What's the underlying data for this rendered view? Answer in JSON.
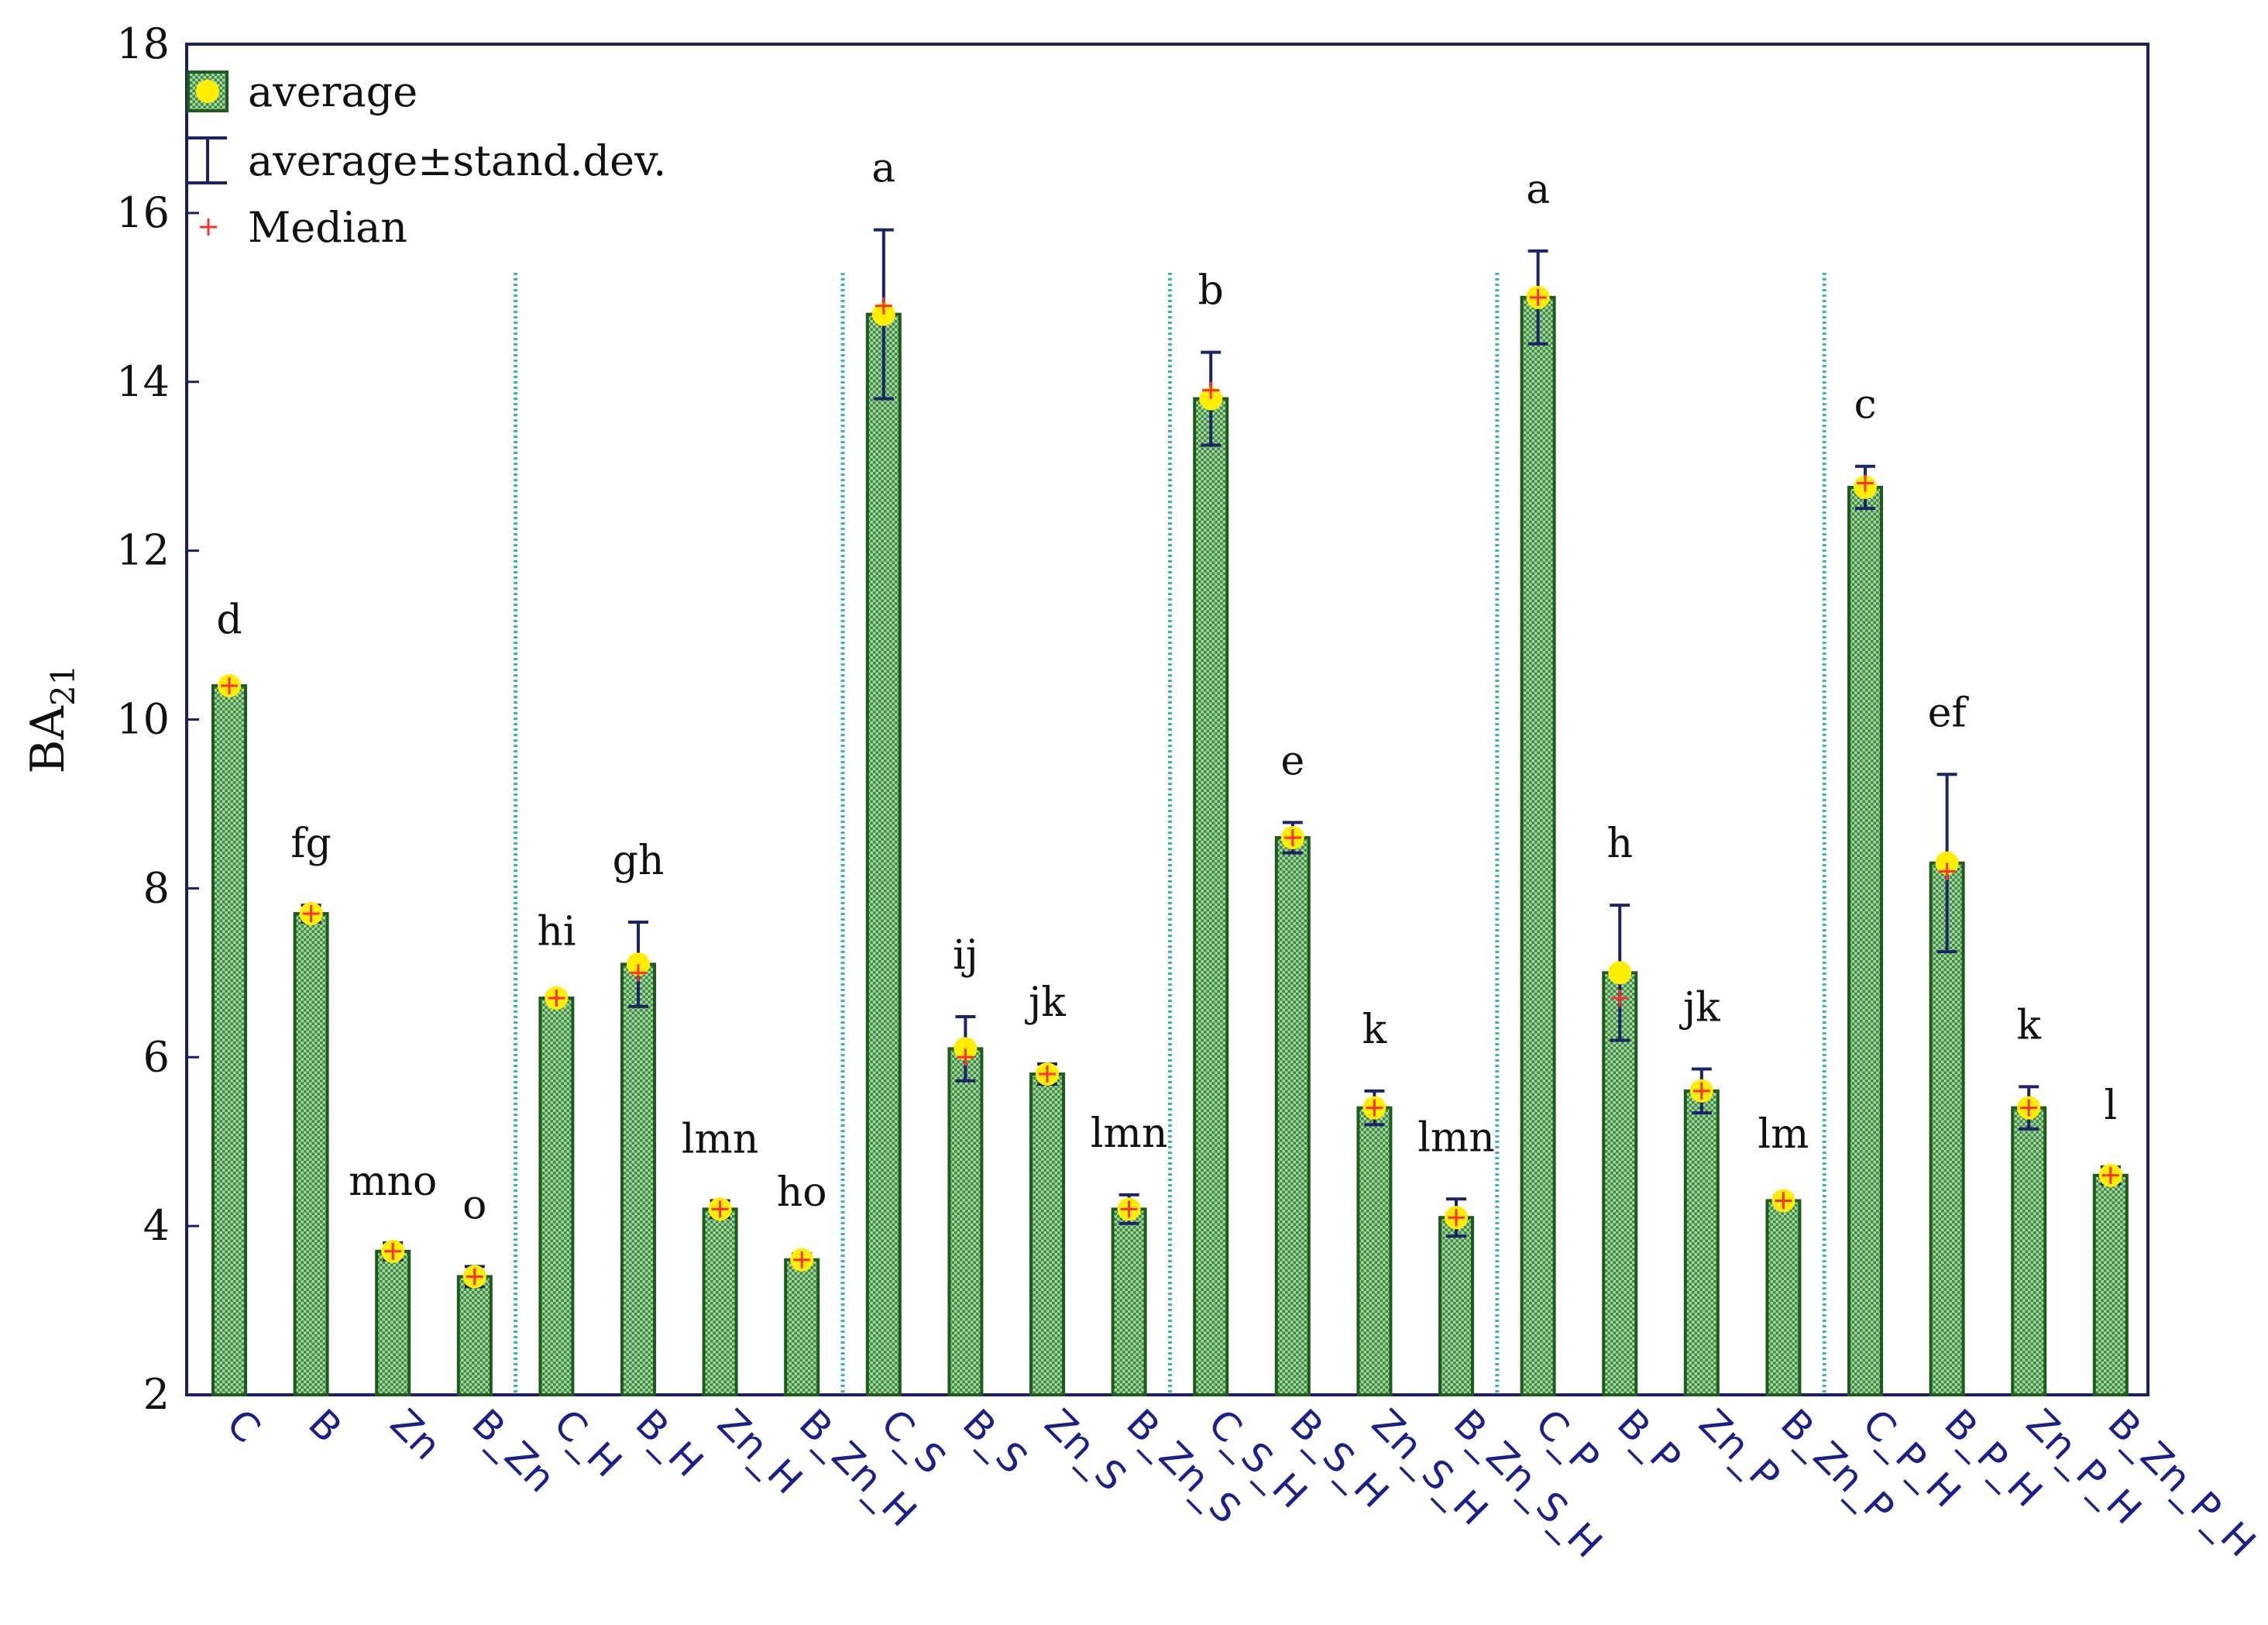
{
  "chart_data": {
    "type": "bar",
    "title": "",
    "xlabel": "",
    "ylabel": "BA",
    "ylabel_subscript": "21",
    "ylim": [
      2,
      18
    ],
    "yticks": [
      2,
      4,
      6,
      8,
      10,
      12,
      14,
      16,
      18
    ],
    "grid": false,
    "legend_position": "top-left",
    "legend": {
      "average": "average",
      "error": "average±stand.dev.",
      "median": "Median"
    },
    "group_separators_after": [
      3,
      7,
      11,
      15,
      19
    ],
    "colors": {
      "bar_fill": "#8dc88d",
      "bar_edge": "#1f5a1f",
      "error_bar": "#1a2466",
      "average_marker": "#ffee00",
      "median_marker": "#ff3030",
      "separator": "#35b5b5",
      "axis": "#1a1f6a",
      "tick_label": "#1a1f8c"
    },
    "categories": [
      "C",
      "B",
      "Zn",
      "B_Zn",
      "C_H",
      "B_H",
      "Zn_H",
      "B_Zn_H",
      "C_S",
      "B_S",
      "Zn_S",
      "B_Zn_S",
      "C_S_H",
      "B_S_H",
      "Zn_S_H",
      "B_Zn_S_H",
      "C_P",
      "B_P",
      "Zn_P",
      "B_Zn_P",
      "C_P_H",
      "B_P_H",
      "Zn_P_H",
      "B_Zn_P_H"
    ],
    "values": [
      10.4,
      7.7,
      3.7,
      3.4,
      6.7,
      7.1,
      4.2,
      3.6,
      14.8,
      6.1,
      5.8,
      4.2,
      13.8,
      8.6,
      5.4,
      4.1,
      15.0,
      7.0,
      5.6,
      4.3,
      12.75,
      8.3,
      5.4,
      4.6
    ],
    "std": [
      0.05,
      0.1,
      0.1,
      0.12,
      0.06,
      0.5,
      0.1,
      0.07,
      1.0,
      0.38,
      0.12,
      0.17,
      0.55,
      0.18,
      0.2,
      0.22,
      0.55,
      0.8,
      0.26,
      0.06,
      0.25,
      1.05,
      0.25,
      0.1
    ],
    "medians": [
      10.4,
      7.7,
      3.7,
      3.4,
      6.7,
      7.0,
      4.2,
      3.6,
      14.9,
      6.0,
      5.8,
      4.2,
      13.9,
      8.6,
      5.4,
      4.1,
      15.0,
      6.7,
      5.6,
      4.3,
      12.8,
      8.2,
      5.4,
      4.6
    ],
    "group_labels": [
      "d",
      "fg",
      "mno",
      "o",
      "hi",
      "gh",
      "lmn",
      "ho",
      "a",
      "ij",
      "jk",
      "lmn",
      "b",
      "e",
      "k",
      "lmn",
      "a",
      "h",
      "jk",
      "lm",
      "c",
      "ef",
      "k",
      "l"
    ]
  }
}
